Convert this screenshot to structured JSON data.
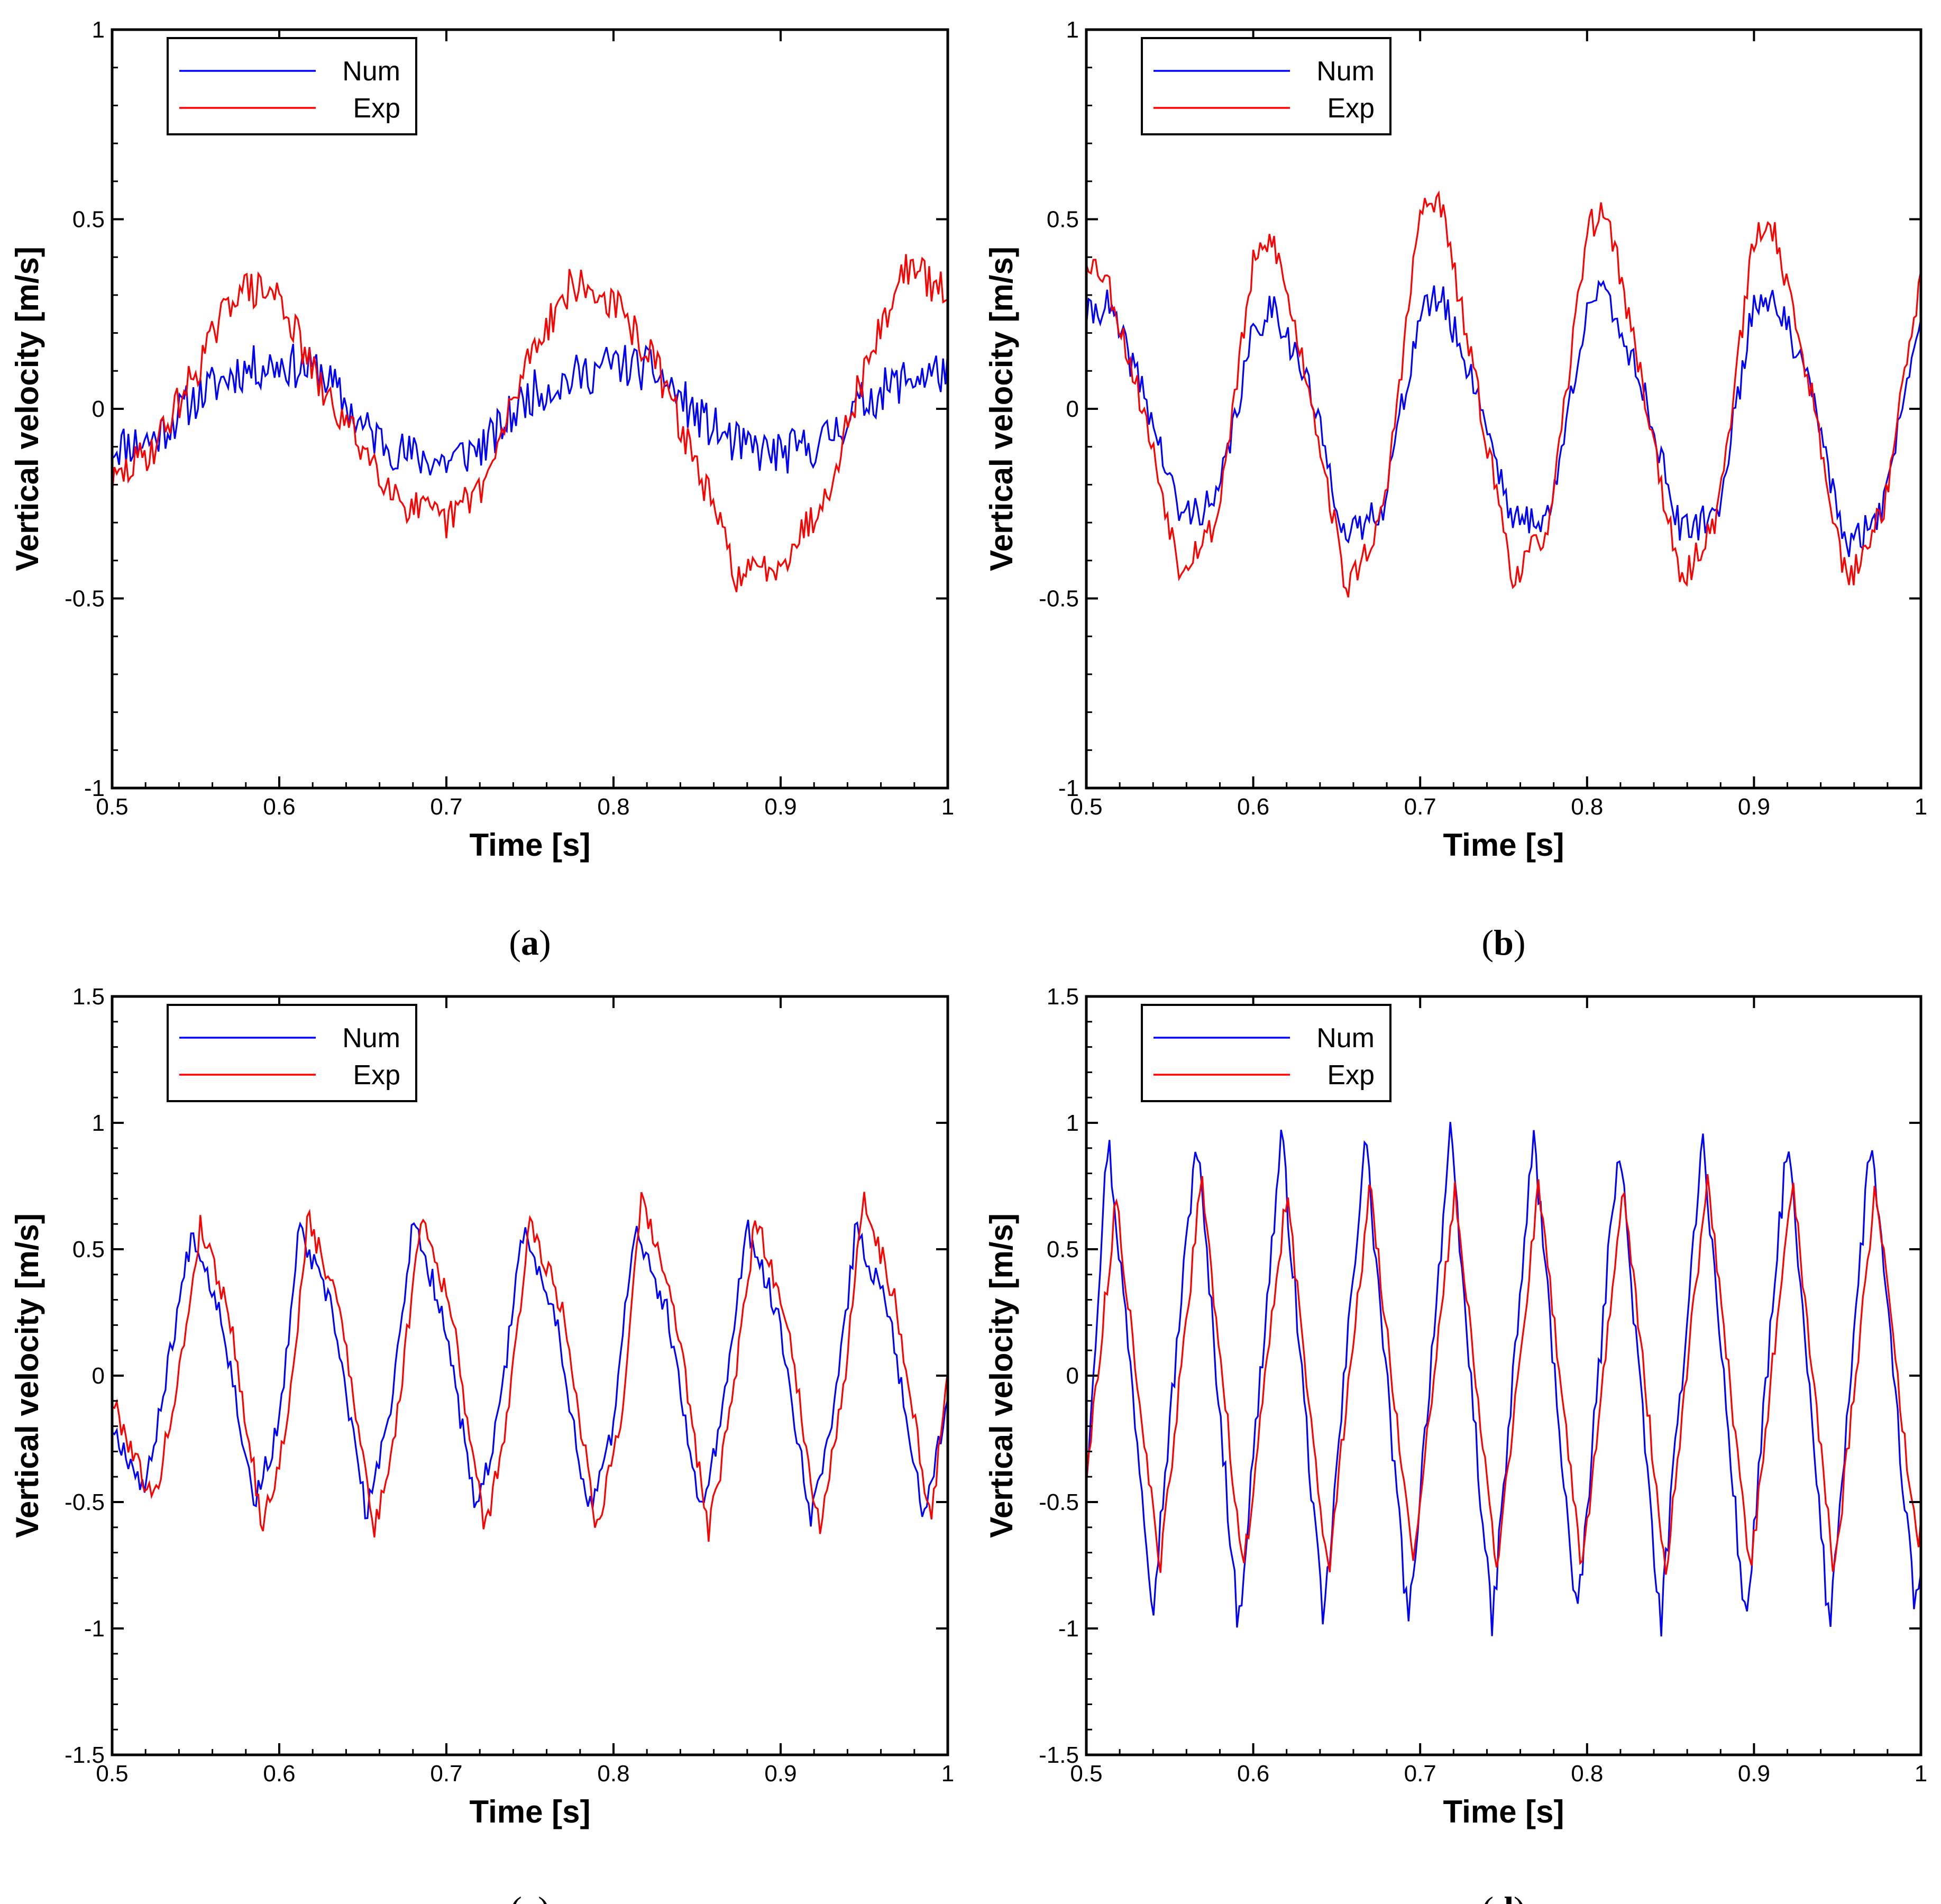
{
  "chart_data": [
    {
      "type": "line",
      "panel": "a",
      "caption_letter": "a",
      "xlabel": "Time [s]",
      "ylabel": "Vertical velocity [m/s]",
      "xlim": [
        0.5,
        1.0
      ],
      "ylim": [
        -1,
        1
      ],
      "xticks": [
        0.5,
        0.6,
        0.7,
        0.8,
        0.9,
        1.0
      ],
      "xtick_labels": [
        "0.5",
        "0.6",
        "0.7",
        "0.8",
        "0.9",
        "1"
      ],
      "yticks": [
        -1,
        -0.5,
        0,
        0.5,
        1
      ],
      "ytick_labels": [
        "-1",
        "-0.5",
        "0",
        "0.5",
        "1"
      ],
      "legend": [
        "Num",
        "Exp"
      ],
      "series": [
        {
          "name": "Num",
          "color": "#0000ff",
          "noise": 0.06,
          "seed": 11,
          "x": [
            0.5,
            0.525,
            0.55,
            0.575,
            0.6,
            0.625,
            0.65,
            0.675,
            0.7,
            0.725,
            0.75,
            0.775,
            0.8,
            0.825,
            0.85,
            0.875,
            0.9,
            0.925,
            0.95,
            0.975,
            1.0
          ],
          "values": [
            -0.1,
            -0.08,
            0.03,
            0.1,
            0.12,
            0.1,
            -0.05,
            -0.12,
            -0.14,
            -0.09,
            0.04,
            0.08,
            0.12,
            0.1,
            -0.02,
            -0.1,
            -0.12,
            -0.09,
            0.02,
            0.08,
            0.1
          ]
        },
        {
          "name": "Exp",
          "color": "#ff0000",
          "noise": 0.05,
          "seed": 29,
          "x": [
            0.5,
            0.525,
            0.55,
            0.575,
            0.6,
            0.625,
            0.65,
            0.675,
            0.7,
            0.725,
            0.75,
            0.775,
            0.8,
            0.825,
            0.85,
            0.875,
            0.9,
            0.925,
            0.95,
            0.975,
            1.0
          ],
          "values": [
            -0.2,
            -0.1,
            0.1,
            0.32,
            0.3,
            0.05,
            -0.1,
            -0.25,
            -0.3,
            -0.18,
            0.15,
            0.33,
            0.28,
            0.12,
            -0.15,
            -0.45,
            -0.4,
            -0.25,
            0.1,
            0.38,
            0.3
          ]
        }
      ]
    },
    {
      "type": "line",
      "panel": "b",
      "caption_letter": "b",
      "xlabel": "Time [s]",
      "ylabel": "Vertical velocity [m/s]",
      "xlim": [
        0.5,
        1.0
      ],
      "ylim": [
        -1,
        1
      ],
      "xticks": [
        0.5,
        0.6,
        0.7,
        0.8,
        0.9,
        1.0
      ],
      "xtick_labels": [
        "0.5",
        "0.6",
        "0.7",
        "0.8",
        "0.9",
        "1"
      ],
      "yticks": [
        -1,
        -0.5,
        0,
        0.5,
        1
      ],
      "ytick_labels": [
        "-1",
        "-0.5",
        "0",
        "0.5",
        "1"
      ],
      "legend": [
        "Num",
        "Exp"
      ],
      "series": [
        {
          "name": "Num",
          "color": "#0000ff",
          "noise": 0.045,
          "seed": 41,
          "x": [
            0.5,
            0.512,
            0.534,
            0.556,
            0.578,
            0.6,
            0.612,
            0.634,
            0.656,
            0.678,
            0.7,
            0.712,
            0.734,
            0.756,
            0.778,
            0.8,
            0.812,
            0.834,
            0.856,
            0.878,
            0.9,
            0.912,
            0.934,
            0.956,
            0.978,
            1.0
          ],
          "values": [
            0.24,
            0.28,
            0.05,
            -0.28,
            -0.25,
            0.2,
            0.28,
            0.05,
            -0.35,
            -0.25,
            0.25,
            0.3,
            0.05,
            -0.3,
            -0.28,
            0.28,
            0.3,
            0.05,
            -0.33,
            -0.28,
            0.28,
            0.3,
            0.05,
            -0.38,
            -0.25,
            0.28
          ]
        },
        {
          "name": "Exp",
          "color": "#ff0000",
          "noise": 0.04,
          "seed": 53,
          "x": [
            0.5,
            0.512,
            0.534,
            0.556,
            0.578,
            0.6,
            0.612,
            0.634,
            0.656,
            0.678,
            0.7,
            0.712,
            0.734,
            0.756,
            0.778,
            0.8,
            0.812,
            0.834,
            0.856,
            0.878,
            0.9,
            0.912,
            0.934,
            0.956,
            0.978,
            1.0
          ],
          "values": [
            0.4,
            0.35,
            0.0,
            -0.42,
            -0.3,
            0.38,
            0.45,
            0.05,
            -0.48,
            -0.28,
            0.52,
            0.55,
            0.05,
            -0.45,
            -0.3,
            0.48,
            0.52,
            0.05,
            -0.47,
            -0.28,
            0.45,
            0.48,
            0.05,
            -0.47,
            -0.25,
            0.35
          ]
        }
      ]
    },
    {
      "type": "line",
      "panel": "c",
      "caption_letter": "c",
      "xlabel": "Time [s]",
      "ylabel": "Vertical velocity [m/s]",
      "xlim": [
        0.5,
        1.0
      ],
      "ylim": [
        -1.5,
        1.5
      ],
      "xticks": [
        0.5,
        0.6,
        0.7,
        0.8,
        0.9,
        1.0
      ],
      "xtick_labels": [
        "0.5",
        "0.6",
        "0.7",
        "0.8",
        "0.9",
        "1"
      ],
      "yticks": [
        -1.5,
        -1,
        -0.5,
        0,
        0.5,
        1,
        1.5
      ],
      "ytick_labels": [
        "-1.5",
        "-1",
        "-0.5",
        "0",
        "0.5",
        "1",
        "1.5"
      ],
      "legend": [
        "Num",
        "Exp"
      ],
      "series": [
        {
          "name": "Num",
          "color": "#0000ff",
          "noise": 0.05,
          "seed": 67,
          "x": [
            0.5,
            0.52,
            0.535,
            0.548,
            0.565,
            0.585,
            0.6,
            0.612,
            0.632,
            0.652,
            0.665,
            0.68,
            0.698,
            0.718,
            0.732,
            0.745,
            0.765,
            0.785,
            0.8,
            0.812,
            0.832,
            0.852,
            0.865,
            0.88,
            0.898,
            0.918,
            0.932,
            0.945,
            0.965,
            0.985,
            1.0
          ],
          "values": [
            -0.2,
            -0.45,
            0.1,
            0.58,
            0.25,
            -0.5,
            -0.2,
            0.58,
            0.25,
            -0.55,
            -0.2,
            0.6,
            0.25,
            -0.55,
            -0.15,
            0.58,
            0.25,
            -0.55,
            -0.2,
            0.58,
            0.25,
            -0.55,
            -0.15,
            0.58,
            0.25,
            -0.55,
            -0.15,
            0.58,
            0.25,
            -0.55,
            -0.1
          ]
        },
        {
          "name": "Exp",
          "color": "#ff0000",
          "noise": 0.05,
          "seed": 79,
          "x": [
            0.5,
            0.525,
            0.54,
            0.553,
            0.57,
            0.59,
            0.605,
            0.617,
            0.637,
            0.657,
            0.67,
            0.685,
            0.703,
            0.723,
            0.737,
            0.75,
            0.77,
            0.79,
            0.805,
            0.817,
            0.837,
            0.857,
            0.87,
            0.885,
            0.903,
            0.923,
            0.937,
            0.95,
            0.97,
            0.99,
            1.0
          ],
          "values": [
            -0.1,
            -0.5,
            0.0,
            0.6,
            0.25,
            -0.6,
            -0.2,
            0.62,
            0.25,
            -0.62,
            -0.2,
            0.65,
            0.25,
            -0.62,
            -0.15,
            0.62,
            0.25,
            -0.6,
            -0.15,
            0.7,
            0.25,
            -0.62,
            -0.15,
            0.62,
            0.25,
            -0.6,
            -0.1,
            0.72,
            0.25,
            -0.6,
            0.05
          ]
        }
      ]
    },
    {
      "type": "line",
      "panel": "d",
      "caption_letter": "d",
      "xlabel": "Time [s]",
      "ylabel": "Vertical velocity [m/s]",
      "xlim": [
        0.5,
        1.0
      ],
      "ylim": [
        -1.5,
        1.5
      ],
      "xticks": [
        0.5,
        0.6,
        0.7,
        0.8,
        0.9,
        1.0
      ],
      "xtick_labels": [
        "0.5",
        "0.6",
        "0.7",
        "0.8",
        "0.9",
        "1"
      ],
      "yticks": [
        -1.5,
        -1,
        -0.5,
        0,
        0.5,
        1,
        1.5
      ],
      "ytick_labels": [
        "-1.5",
        "-1",
        "-0.5",
        "0",
        "0.5",
        "1",
        "1.5"
      ],
      "legend": [
        "Num",
        "Exp"
      ],
      "series": [
        {
          "name": "Num",
          "color": "#0000ff",
          "noise": 0.07,
          "seed": 97,
          "x": [
            0.5,
            0.513,
            0.54,
            0.566,
            0.591,
            0.617,
            0.642,
            0.667,
            0.693,
            0.718,
            0.743,
            0.768,
            0.794,
            0.819,
            0.844,
            0.869,
            0.895,
            0.92,
            0.945,
            0.97,
            0.996,
            1.0
          ],
          "values": [
            -0.4,
            0.95,
            -0.9,
            0.95,
            -1.0,
            0.95,
            -1.0,
            0.95,
            -1.0,
            0.95,
            -1.0,
            0.95,
            -1.0,
            0.95,
            -1.0,
            0.95,
            -1.0,
            0.95,
            -1.0,
            0.95,
            -0.9,
            -0.8
          ]
        },
        {
          "name": "Exp",
          "color": "#ff0000",
          "noise": 0.05,
          "seed": 113,
          "x": [
            0.5,
            0.518,
            0.544,
            0.569,
            0.594,
            0.62,
            0.645,
            0.67,
            0.696,
            0.721,
            0.746,
            0.771,
            0.797,
            0.822,
            0.847,
            0.872,
            0.898,
            0.923,
            0.948,
            0.973,
            0.998,
            1.0
          ],
          "values": [
            -0.4,
            0.7,
            -0.78,
            0.78,
            -0.78,
            0.72,
            -0.78,
            0.75,
            -0.75,
            0.75,
            -0.78,
            0.75,
            -0.78,
            0.75,
            -0.78,
            0.78,
            -0.78,
            0.78,
            -0.8,
            0.75,
            -0.7,
            -0.6
          ]
        }
      ]
    }
  ]
}
